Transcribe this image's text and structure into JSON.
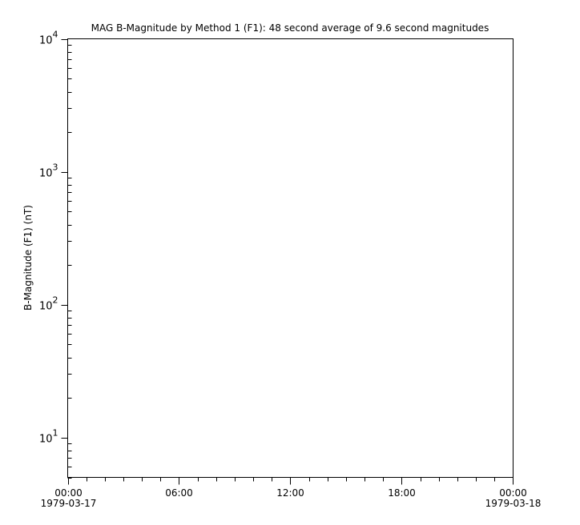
{
  "chart_data": {
    "type": "line",
    "title": "MAG  B-Magnitude by Method 1 (F1): 48 second average of 9.6 second magnitudes",
    "ylabel": "B-Magnitude (F1) (nT)",
    "xlabel": "",
    "yscale": "log",
    "ylim": [
      5,
      10000
    ],
    "xlim": [
      "1979-03-17T00:00",
      "1979-03-18T00:00"
    ],
    "y_ticks": [
      {
        "base": "10",
        "exp": "1",
        "value": 10
      },
      {
        "base": "10",
        "exp": "2",
        "value": 100
      },
      {
        "base": "10",
        "exp": "3",
        "value": 1000
      },
      {
        "base": "10",
        "exp": "4",
        "value": 10000
      }
    ],
    "x_ticks": [
      {
        "hour": 0,
        "time": "00:00",
        "date": "1979-03-17"
      },
      {
        "hour": 6,
        "time": "06:00",
        "date": ""
      },
      {
        "hour": 12,
        "time": "12:00",
        "date": ""
      },
      {
        "hour": 18,
        "time": "18:00",
        "date": ""
      },
      {
        "hour": 24,
        "time": "00:00",
        "date": "1979-03-18"
      }
    ],
    "x_minor_tick_hours": 1,
    "grid": false,
    "series": []
  }
}
